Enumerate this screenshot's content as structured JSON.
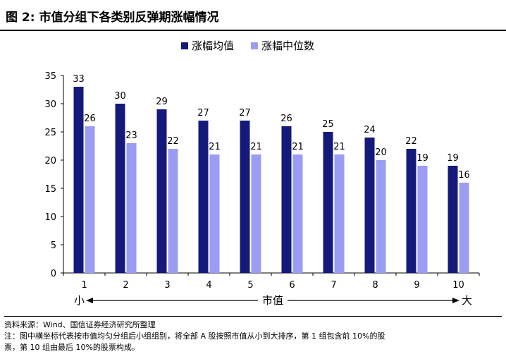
{
  "figure": {
    "title": "图 2:  市值分组下各类别反弹期涨幅情况"
  },
  "chart_data": {
    "type": "bar",
    "categories": [
      "1",
      "2",
      "3",
      "4",
      "5",
      "6",
      "7",
      "8",
      "9",
      "10"
    ],
    "series": [
      {
        "name": "涨幅均值",
        "values": [
          33,
          30,
          29,
          27,
          27,
          26,
          25,
          24,
          22,
          19
        ],
        "color": "#151a7a"
      },
      {
        "name": "涨幅中位数",
        "values": [
          26,
          23,
          22,
          21,
          21,
          21,
          21,
          20,
          19,
          16
        ],
        "color": "#9b9cf3"
      }
    ],
    "data_labels": {
      "mean": [
        "33",
        "30",
        "29",
        "27",
        "27",
        "26",
        "25",
        "24",
        "22",
        "19"
      ],
      "median": [
        "26",
        "23",
        "22",
        "21",
        "21",
        "21",
        "21",
        "20",
        "19",
        "16"
      ]
    },
    "ylim": [
      0,
      35
    ],
    "yticks": [
      "0",
      "5",
      "10",
      "15",
      "20",
      "25",
      "30",
      "35"
    ],
    "legend_position": "top-center",
    "grid": false,
    "x_annotation": {
      "left": "小",
      "center": "市值",
      "right": "大"
    }
  },
  "notes": {
    "source": "资料来源：Wind、国信证券经济研究所整理",
    "note_line1": "注：图中横坐标代表按市值均匀分组后小组组别，将全部 A 股按照市值从小到大排序，第 1 组包含前 10%的股",
    "note_line2": "票，第 10 组由最后 10%的股票构成。"
  }
}
